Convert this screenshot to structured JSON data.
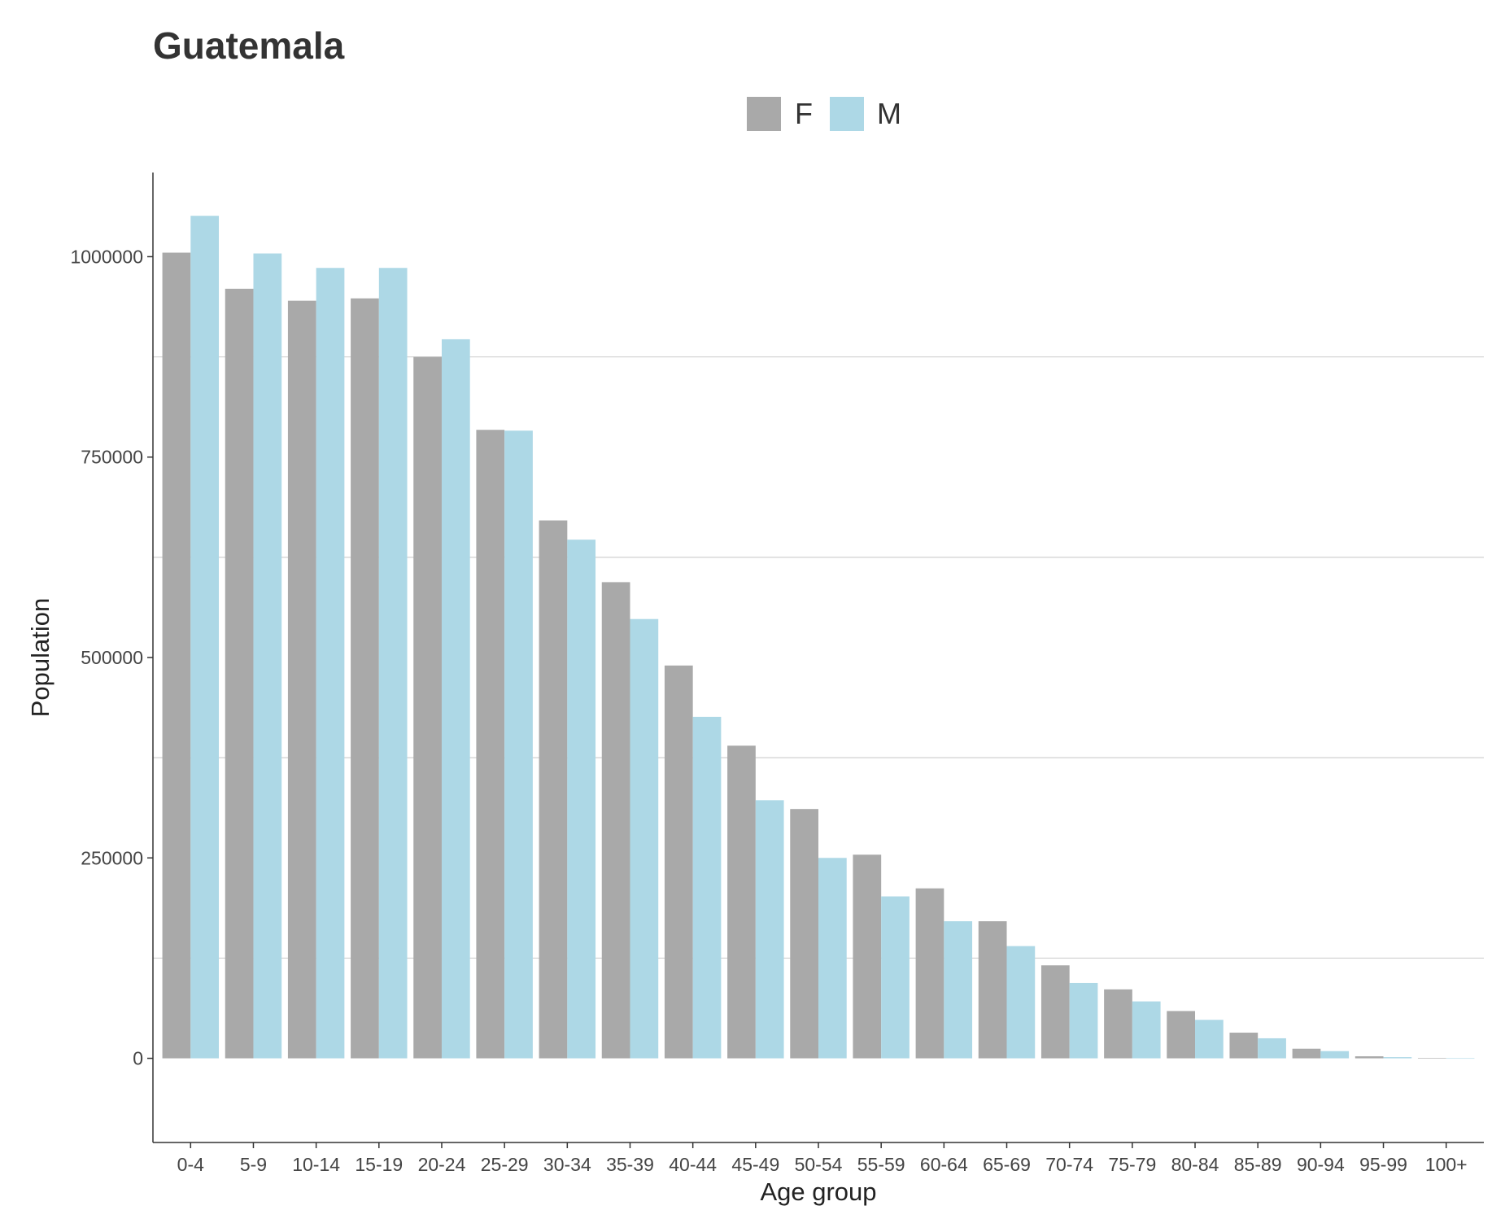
{
  "chart_data": {
    "type": "bar",
    "title": "Guatemala",
    "xlabel": "Age group",
    "ylabel": "Population",
    "ylim": [
      -105000,
      1105000
    ],
    "yticks": [
      0,
      250000,
      500000,
      750000,
      1000000
    ],
    "ytick_labels": [
      "0",
      "250000",
      "500000",
      "750000",
      "1000000"
    ],
    "minor_gridlines": [
      125000,
      375000,
      625000,
      875000
    ],
    "grid": "horizontal minor",
    "legend_position": "top",
    "categories": [
      "0-4",
      "5-9",
      "10-14",
      "15-19",
      "20-24",
      "25-29",
      "30-34",
      "35-39",
      "40-44",
      "45-49",
      "50-54",
      "55-59",
      "60-64",
      "65-69",
      "70-74",
      "75-79",
      "80-84",
      "85-89",
      "90-94",
      "95-99",
      "100+"
    ],
    "series": [
      {
        "name": "F",
        "color": "#a9a9a9",
        "values": [
          1005000,
          960000,
          945000,
          948000,
          875000,
          784000,
          671000,
          594000,
          490000,
          390000,
          311000,
          254000,
          212000,
          171000,
          116000,
          86000,
          59000,
          32000,
          12000,
          2500,
          300
        ]
      },
      {
        "name": "M",
        "color": "#add8e6",
        "values": [
          1051000,
          1004000,
          986000,
          986000,
          897000,
          783000,
          647000,
          548000,
          426000,
          322000,
          250000,
          202000,
          171000,
          140000,
          94000,
          71000,
          48000,
          25000,
          9000,
          1500,
          100
        ]
      }
    ]
  }
}
